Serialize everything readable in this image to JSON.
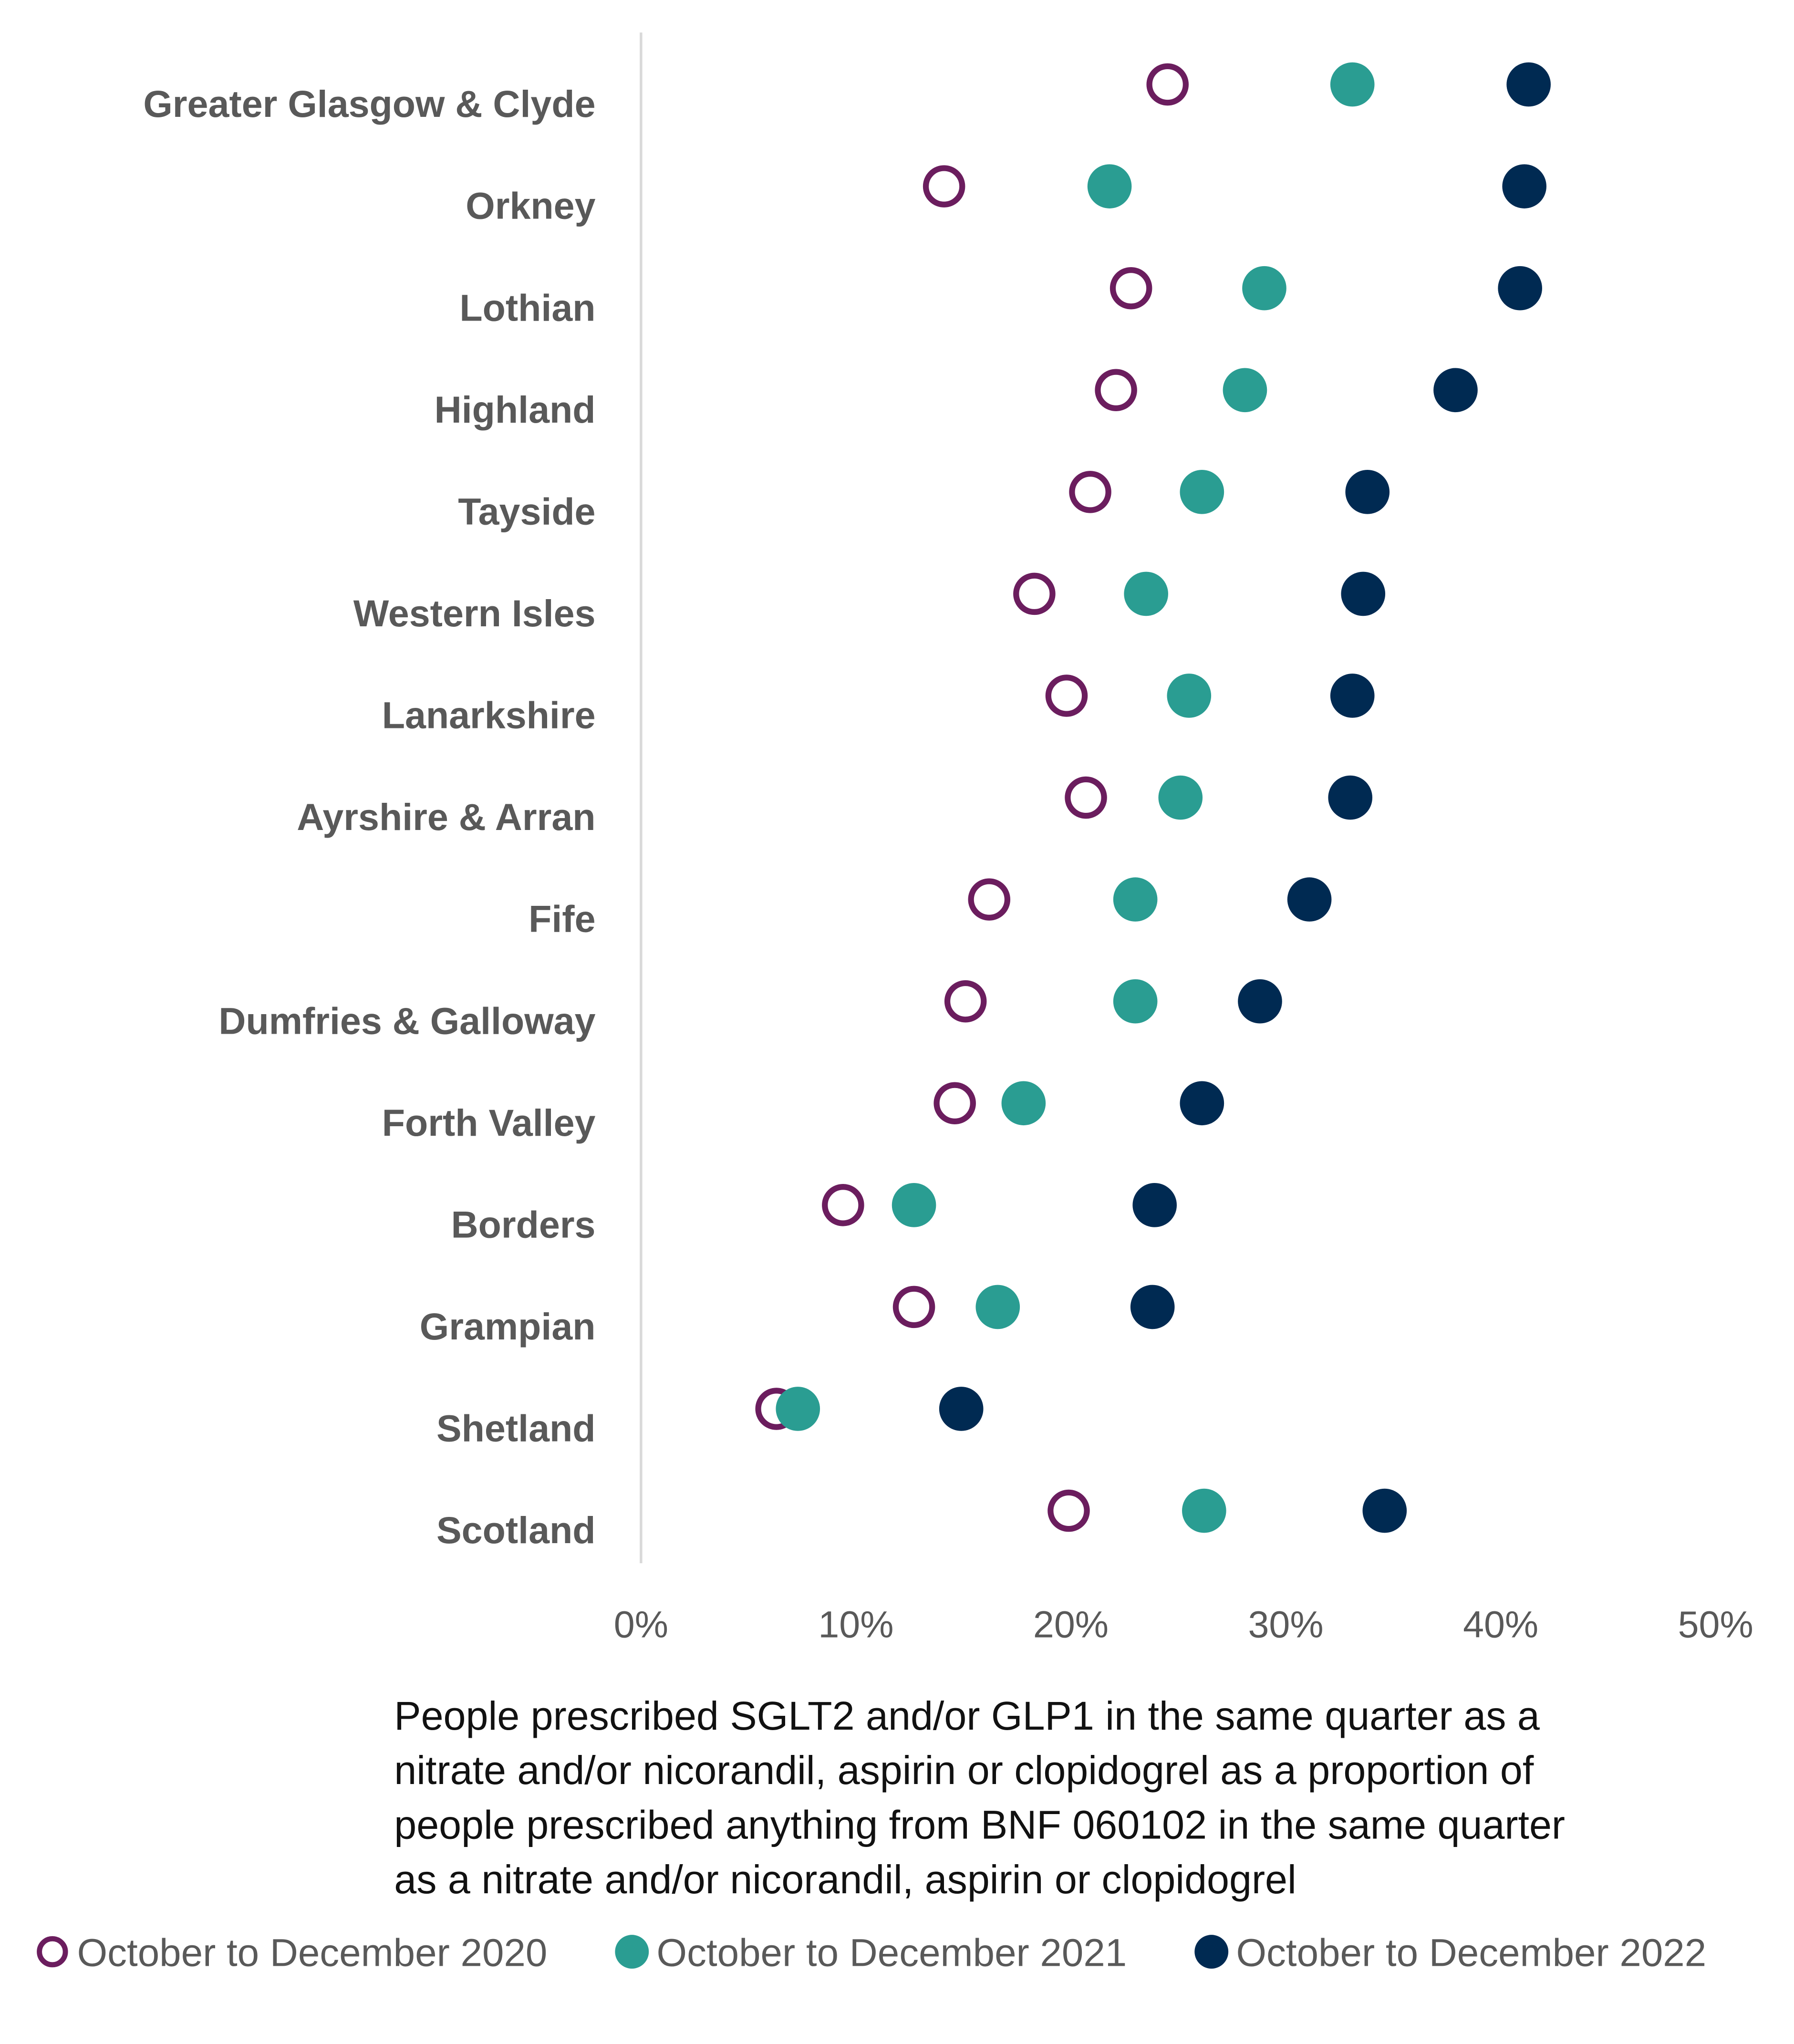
{
  "chart_data": {
    "type": "scatter",
    "subtype": "dot-plot",
    "xlabel": "People prescribed SGLT2 and/or GLP1 in the same quarter as a nitrate and/or nicorandil, aspirin or clopidogrel as a proportion of people prescribed anything from BNF 060102 in the same quarter as a nitrate and/or nicorandil, aspirin or clopidogrel",
    "xlabel_lines": [
      "People prescribed SGLT2 and/or GLP1 in the same quarter as a",
      "nitrate and/or nicorandil, aspirin or clopidogrel as a proportion of",
      "people prescribed anything from BNF 060102 in the same quarter",
      "as a nitrate and/or nicorandil, aspirin or clopidogrel"
    ],
    "xlim": [
      0,
      50
    ],
    "x_ticks": [
      0,
      10,
      20,
      30,
      40,
      50
    ],
    "x_tick_labels": [
      "0%",
      "10%",
      "20%",
      "30%",
      "40%",
      "50%"
    ],
    "grid": false,
    "legend_position": "bottom",
    "categories": [
      "Greater Glasgow & Clyde",
      "Orkney",
      "Lothian",
      "Highland",
      "Tayside",
      "Western Isles",
      "Lanarkshire",
      "Ayrshire & Arran",
      "Fife",
      "Dumfries & Galloway",
      "Forth Valley",
      "Borders",
      "Grampian",
      "Shetland",
      "Scotland"
    ],
    "series": [
      {
        "name": "October to December 2020",
        "color": "#6B1D5E",
        "marker": "hollow-circle",
        "values": [
          24.5,
          14.1,
          22.8,
          22.1,
          20.9,
          18.3,
          19.8,
          20.7,
          16.2,
          15.1,
          14.6,
          9.4,
          12.7,
          6.3,
          19.9
        ]
      },
      {
        "name": "October to December 2021",
        "color": "#2A9D92",
        "marker": "filled-circle",
        "values": [
          33.1,
          21.8,
          29.0,
          28.1,
          26.1,
          23.5,
          25.5,
          25.1,
          23.0,
          23.0,
          17.8,
          12.7,
          16.6,
          7.3,
          26.2
        ]
      },
      {
        "name": "October to December 2022",
        "color": "#002A52",
        "marker": "filled-circle",
        "values": [
          41.3,
          41.1,
          40.9,
          37.9,
          33.8,
          33.6,
          33.1,
          33.0,
          31.1,
          28.8,
          26.1,
          23.9,
          23.8,
          14.9,
          34.6
        ]
      }
    ]
  }
}
